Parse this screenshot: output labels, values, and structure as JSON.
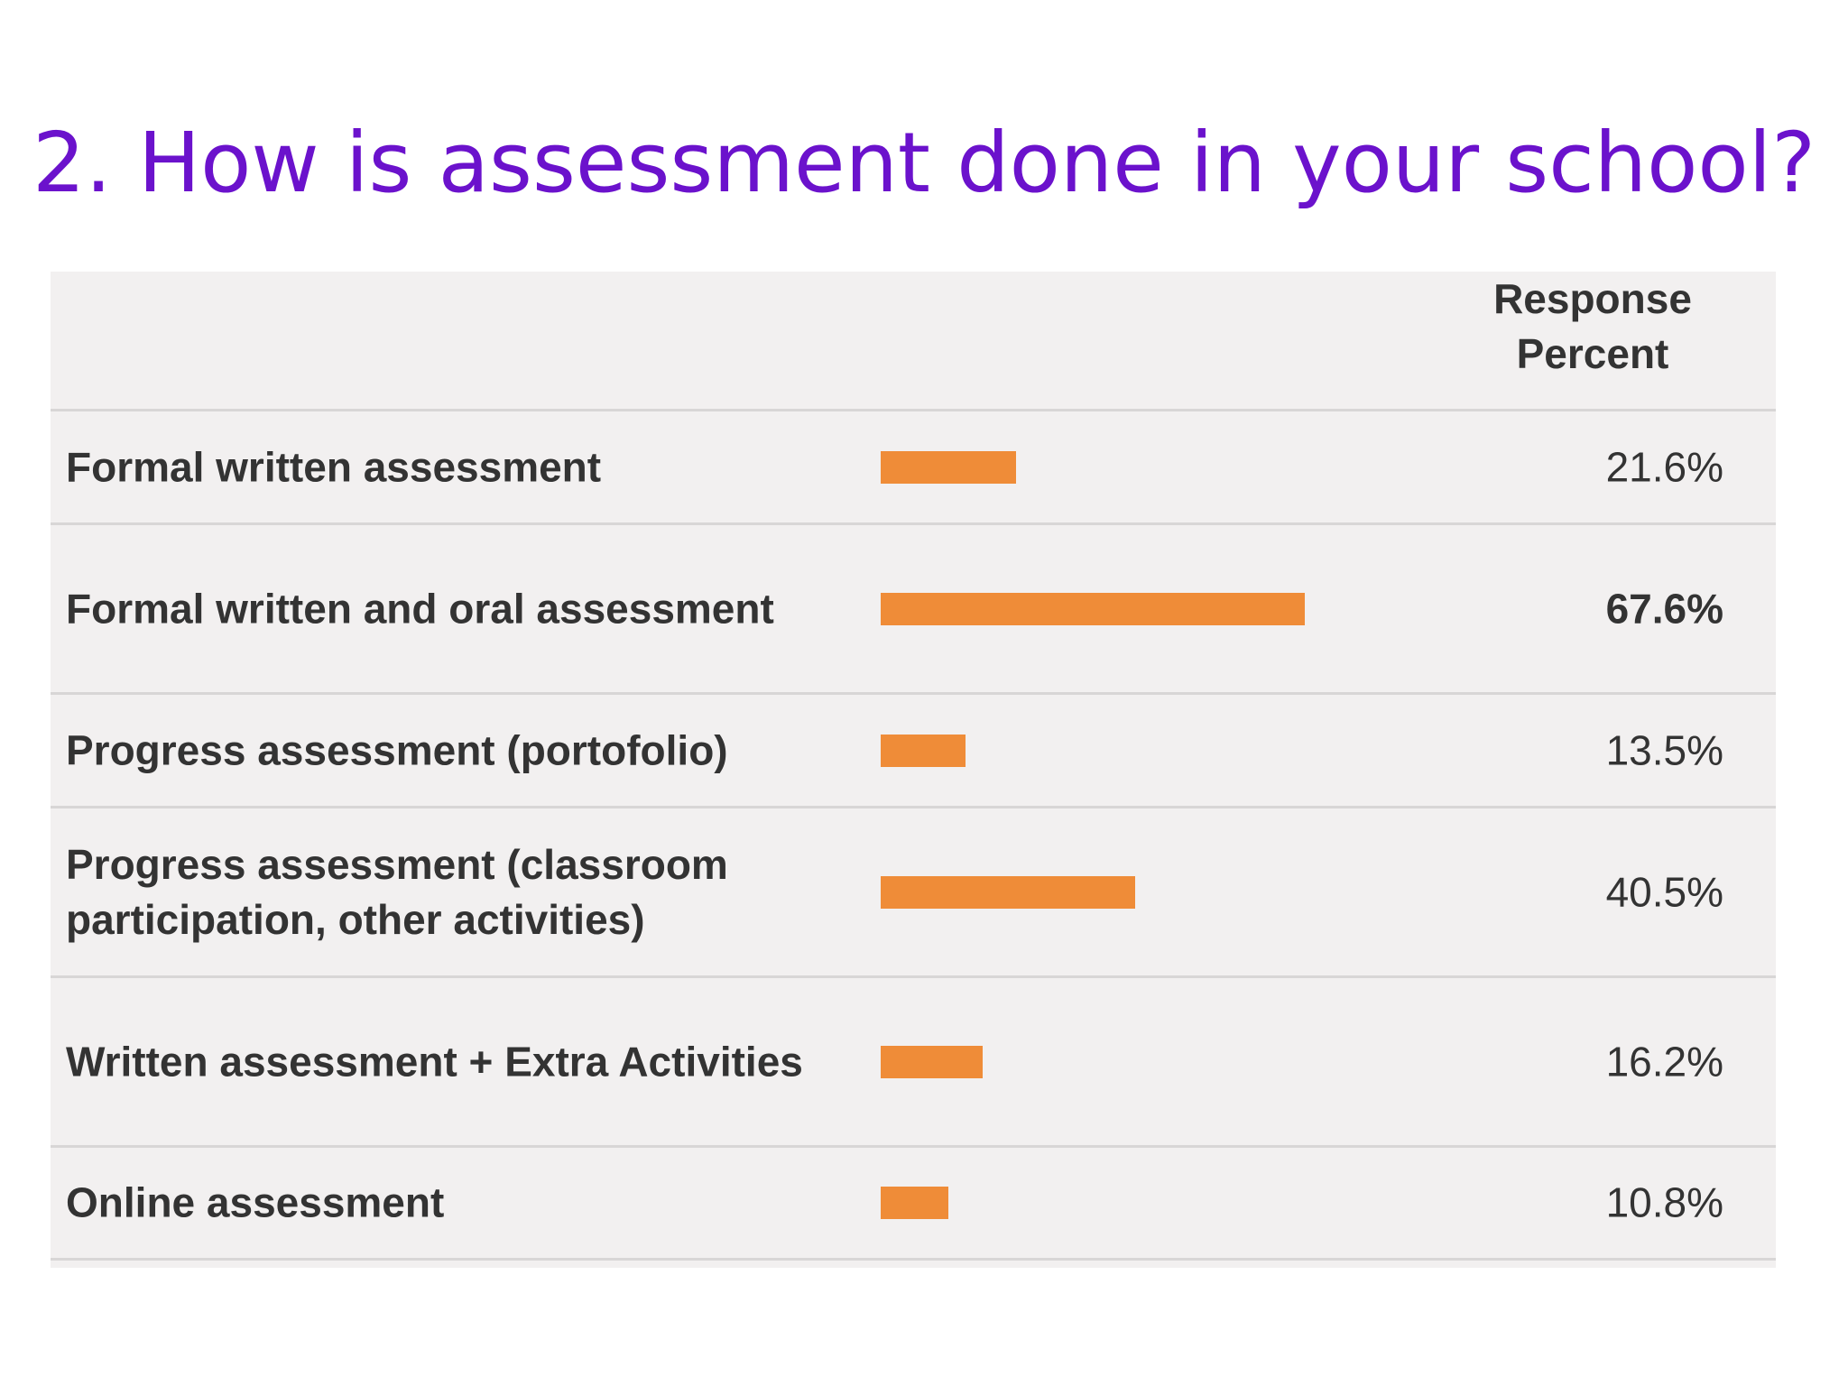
{
  "title": "2. How is assessment done in your school?",
  "chart_data": {
    "type": "bar",
    "orientation": "horizontal",
    "column_header": "Response Percent",
    "categories": [
      "Formal written assessment",
      "Formal written and oral assessment",
      "Progress assessment (portofolio)",
      "Progress assessment (classroom participation, other activities)",
      "Written assessment + Extra Activities",
      "Online assessment"
    ],
    "values": [
      21.6,
      67.6,
      13.5,
      40.5,
      16.2,
      10.8
    ],
    "value_labels": [
      "21.6%",
      "67.6%",
      "13.5%",
      "40.5%",
      "16.2%",
      "10.8%"
    ],
    "highlighted_index": 1,
    "xlim": [
      0,
      100
    ],
    "bar_color": "#ef8c38",
    "title_color": "#6b12cc"
  }
}
